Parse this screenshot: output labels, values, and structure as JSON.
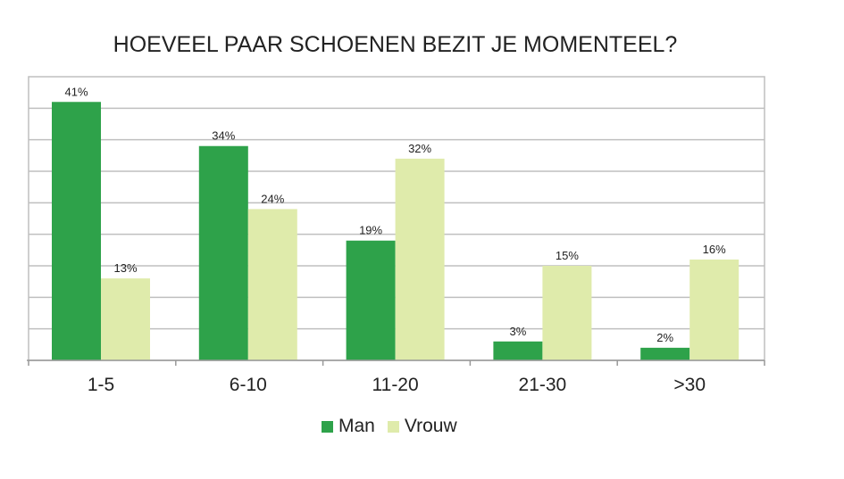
{
  "chart_data": {
    "type": "bar",
    "title": "HOEVEEL PAAR SCHOENEN BEZIT JE MOMENTEEL?",
    "categories": [
      "1-5",
      "6-10",
      "11-20",
      "21-30",
      ">30"
    ],
    "series": [
      {
        "name": "Man",
        "values": [
          41,
          34,
          19,
          3,
          2
        ],
        "labels": [
          "41%",
          "34%",
          "19%",
          "3%",
          "2%"
        ],
        "color": "#2ea24a"
      },
      {
        "name": "Vrouw",
        "values": [
          13,
          24,
          32,
          15,
          16
        ],
        "labels": [
          "13%",
          "24%",
          "32%",
          "15%",
          "16%"
        ],
        "color": "#dfebab"
      }
    ],
    "ylim": [
      0,
      45
    ],
    "grid": true,
    "legend": "bottom",
    "y_tick_labels": false
  }
}
